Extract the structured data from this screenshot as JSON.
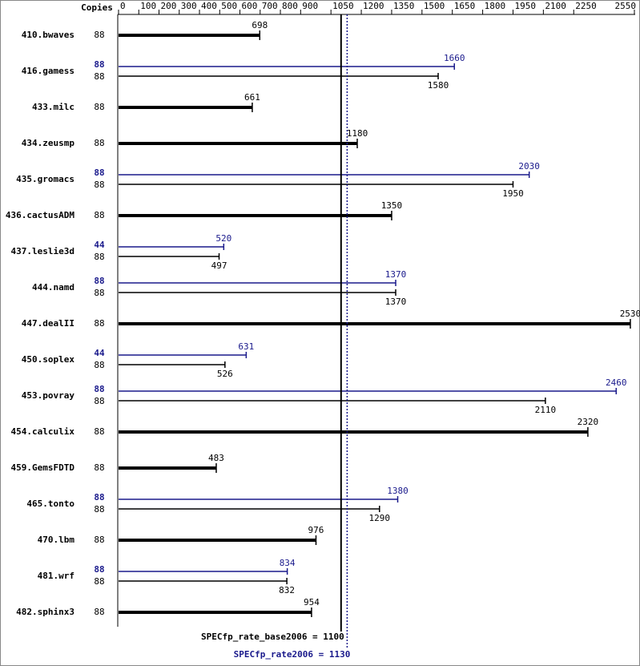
{
  "chart_data": {
    "type": "bar",
    "orientation": "horizontal",
    "copies_label": "Copies",
    "categories": [
      "410.bwaves",
      "416.gamess",
      "433.milc",
      "434.zeusmp",
      "435.gromacs",
      "436.cactusADM",
      "437.leslie3d",
      "444.namd",
      "447.dealII",
      "450.soplex",
      "453.povray",
      "454.calculix",
      "459.GemsFDTD",
      "465.tonto",
      "470.lbm",
      "481.wrf",
      "482.sphinx3"
    ],
    "series": [
      {
        "color": "#000000",
        "copies": [
          88,
          88,
          88,
          88,
          88,
          88,
          88,
          88,
          88,
          88,
          88,
          88,
          88,
          88,
          88,
          88,
          88
        ],
        "values": [
          698,
          1580,
          661,
          1180,
          1950,
          1350,
          497,
          1370,
          2530,
          526,
          2110,
          2320,
          483,
          1290,
          976,
          832,
          954
        ]
      },
      {
        "color": "#1a1a8c",
        "copies": [
          null,
          88,
          null,
          null,
          88,
          null,
          44,
          88,
          null,
          44,
          88,
          null,
          null,
          88,
          null,
          88,
          null
        ],
        "values": [
          null,
          1660,
          null,
          null,
          2030,
          null,
          520,
          1370,
          null,
          631,
          2460,
          null,
          null,
          1380,
          null,
          834,
          null
        ]
      }
    ],
    "xlim": [
      0,
      2550
    ],
    "xticks": [
      0,
      100,
      200,
      300,
      400,
      500,
      600,
      700,
      800,
      900,
      1050,
      1200,
      1350,
      1500,
      1650,
      1800,
      1950,
      2100,
      2250,
      2550
    ],
    "reference_lines": [
      {
        "label": "SPECfp_rate_base2006 = 1100",
        "value": 1100,
        "color": "#000000",
        "style": "solid"
      },
      {
        "label": "SPECfp_rate2006 = 1130",
        "value": 1130,
        "color": "#1a1a8c",
        "style": "dotted"
      }
    ]
  }
}
